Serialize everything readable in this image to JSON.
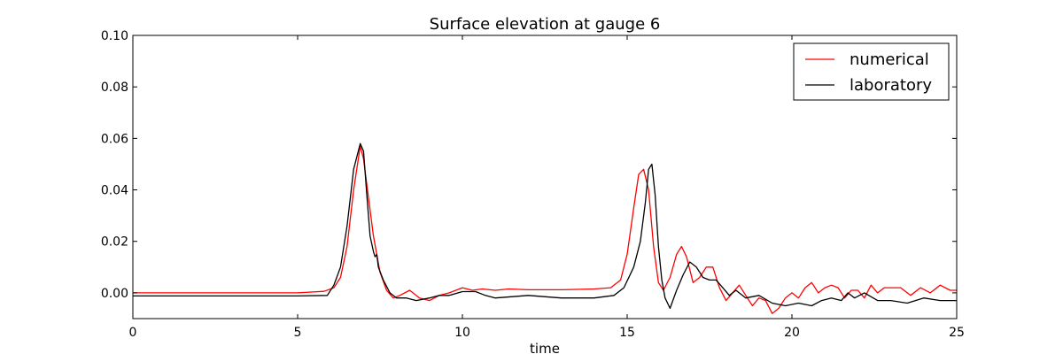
{
  "chart_data": {
    "type": "line",
    "title": "Surface elevation at gauge 6",
    "xlabel": "time",
    "ylabel": "",
    "xlim": [
      0,
      25
    ],
    "ylim": [
      -0.01,
      0.1
    ],
    "xticks": [
      0,
      5,
      10,
      15,
      20,
      25
    ],
    "xtick_labels": [
      "0",
      "5",
      "10",
      "15",
      "20",
      "25"
    ],
    "yticks": [
      0.0,
      0.02,
      0.04,
      0.06,
      0.08,
      0.1
    ],
    "ytick_labels": [
      "0.00",
      "0.02",
      "0.04",
      "0.06",
      "0.08",
      "0.10"
    ],
    "grid": false,
    "legend_position": "top-right",
    "series": [
      {
        "name": "numerical",
        "color": "#ff0000",
        "x": [
          0,
          5,
          5.8,
          6.1,
          6.3,
          6.5,
          6.7,
          6.9,
          7.0,
          7.1,
          7.3,
          7.5,
          7.7,
          7.9,
          8.1,
          8.4,
          8.7,
          9.0,
          9.3,
          9.6,
          10.0,
          10.3,
          10.6,
          11.0,
          11.4,
          12.0,
          13.0,
          14.0,
          14.5,
          14.8,
          15.0,
          15.2,
          15.35,
          15.5,
          15.65,
          15.8,
          15.95,
          16.1,
          16.3,
          16.5,
          16.65,
          16.8,
          17.0,
          17.2,
          17.4,
          17.6,
          17.8,
          18.0,
          18.2,
          18.4,
          18.6,
          18.8,
          19.0,
          19.2,
          19.4,
          19.6,
          19.8,
          20.0,
          20.2,
          20.4,
          20.6,
          20.8,
          21.0,
          21.2,
          21.4,
          21.6,
          21.8,
          22.0,
          22.2,
          22.4,
          22.6,
          22.8,
          23.0,
          23.3,
          23.6,
          23.9,
          24.2,
          24.5,
          24.8,
          25.0
        ],
        "y": [
          0.0,
          0.0,
          0.0006,
          0.002,
          0.006,
          0.018,
          0.04,
          0.057,
          0.052,
          0.042,
          0.022,
          0.008,
          0.001,
          -0.002,
          -0.001,
          0.001,
          -0.002,
          -0.003,
          -0.001,
          0.0,
          0.002,
          0.001,
          0.0015,
          0.001,
          0.0015,
          0.0012,
          0.0012,
          0.0015,
          0.002,
          0.005,
          0.015,
          0.033,
          0.046,
          0.048,
          0.04,
          0.018,
          0.004,
          0.001,
          0.006,
          0.015,
          0.018,
          0.014,
          0.004,
          0.006,
          0.01,
          0.01,
          0.002,
          -0.003,
          0.0,
          0.003,
          -0.001,
          -0.005,
          -0.002,
          -0.003,
          -0.008,
          -0.006,
          -0.002,
          0.0,
          -0.002,
          0.002,
          0.004,
          0.0,
          0.002,
          0.003,
          0.002,
          -0.002,
          0.001,
          0.001,
          -0.002,
          0.003,
          0.0,
          0.002,
          0.002,
          0.002,
          -0.001,
          0.002,
          0.0,
          0.003,
          0.001,
          0.001
        ]
      },
      {
        "name": "laboratory",
        "color": "#000000",
        "x": [
          0,
          5,
          5.9,
          6.1,
          6.3,
          6.5,
          6.7,
          6.9,
          7.0,
          7.1,
          7.2,
          7.3,
          7.35,
          7.4,
          7.45,
          7.6,
          7.8,
          8.0,
          8.3,
          8.6,
          9.0,
          9.3,
          9.6,
          10.0,
          10.4,
          10.7,
          11.0,
          12.0,
          13.0,
          14.0,
          14.6,
          14.9,
          15.2,
          15.4,
          15.55,
          15.65,
          15.75,
          15.85,
          15.95,
          16.05,
          16.15,
          16.3,
          16.5,
          16.7,
          16.9,
          17.1,
          17.3,
          17.5,
          17.7,
          17.9,
          18.1,
          18.3,
          18.6,
          19.0,
          19.4,
          19.8,
          20.2,
          20.6,
          20.9,
          21.2,
          21.5,
          21.7,
          21.9,
          22.2,
          22.6,
          23.0,
          23.5,
          24.0,
          24.5,
          25.0
        ],
        "y": [
          -0.0012,
          -0.0012,
          -0.001,
          0.003,
          0.01,
          0.026,
          0.048,
          0.058,
          0.055,
          0.038,
          0.022,
          0.016,
          0.014,
          0.015,
          0.01,
          0.005,
          0.0,
          -0.002,
          -0.002,
          -0.003,
          -0.002,
          -0.001,
          -0.001,
          0.0005,
          0.0005,
          -0.001,
          -0.002,
          -0.001,
          -0.002,
          -0.002,
          -0.001,
          0.002,
          0.01,
          0.02,
          0.035,
          0.048,
          0.05,
          0.038,
          0.018,
          0.005,
          -0.002,
          -0.006,
          0.001,
          0.007,
          0.012,
          0.01,
          0.006,
          0.005,
          0.005,
          0.002,
          -0.001,
          0.001,
          -0.002,
          -0.001,
          -0.004,
          -0.005,
          -0.004,
          -0.005,
          -0.003,
          -0.002,
          -0.003,
          0.0,
          -0.002,
          0.0,
          -0.003,
          -0.003,
          -0.004,
          -0.002,
          -0.003,
          -0.003
        ]
      }
    ]
  }
}
